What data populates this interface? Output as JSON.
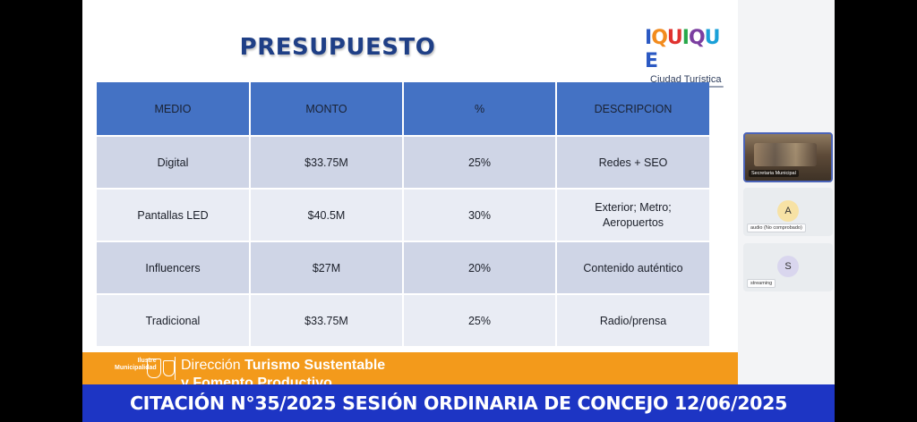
{
  "slide": {
    "title": "PRESUPUESTO",
    "logo": {
      "word": [
        "I",
        "Q",
        "U",
        "I",
        "Q",
        "U",
        "E"
      ],
      "colors": [
        "#2b59c3",
        "#f28b1d",
        "#e0322f",
        "#27a84a",
        "#7b3fa0",
        "#1aa0d8",
        "#2b59c3"
      ],
      "subtitle": "Ciudad Turística"
    },
    "table": {
      "headers": [
        "MEDIO",
        "MONTO",
        "%",
        "DESCRIPCION"
      ],
      "rows": [
        [
          "Digital",
          "$33.75M",
          "25%",
          "Redes + SEO"
        ],
        [
          "Pantallas LED",
          "$40.5M",
          "30%",
          "Exterior; Metro; Aeropuertos"
        ],
        [
          "Influencers",
          "$27M",
          "20%",
          "Contenido auténtico"
        ],
        [
          "Tradicional",
          "$33.75M",
          "25%",
          "Radio/prensa"
        ]
      ]
    },
    "banner": {
      "municipality_line1": "Ilustre",
      "municipality_line2": "Municipalidad",
      "direction_prefix": "Dirección",
      "direction_bold": "Turismo Sustentable",
      "second_line": "y Fomento Productivo"
    }
  },
  "participants": [
    {
      "label": "Secretaria Municipal"
    },
    {
      "initial": "A",
      "label": "audio (No comprobado)"
    },
    {
      "initial": "S",
      "label": "streaming"
    }
  ],
  "caption": "CITACIÓN N°35/2025 SESIÓN ORDINARIA DE CONCEJO 12/06/2025"
}
